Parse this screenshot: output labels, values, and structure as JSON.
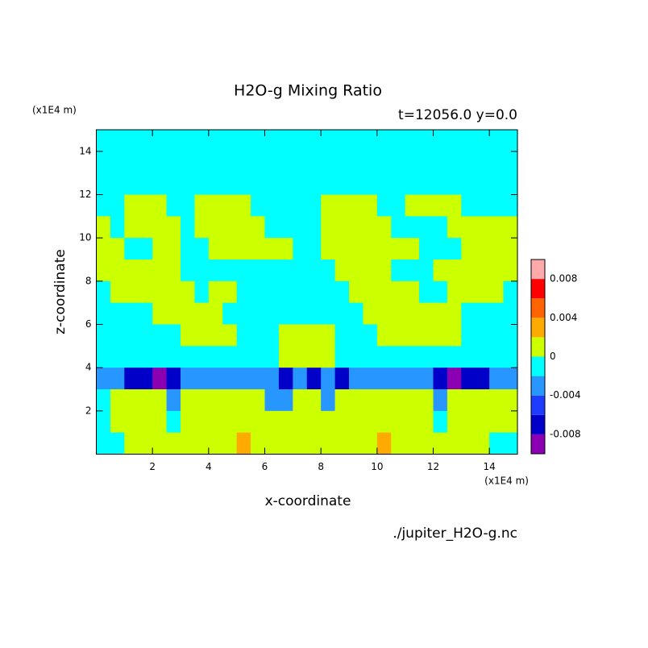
{
  "chart_data": {
    "type": "contour",
    "title": "H2O-g Mixing Ratio",
    "subtitle": "t=12056.0 y=0.0",
    "x_unit": "(x1E4 m)",
    "y_unit": "(x1E4 m)",
    "x_label": "x-coordinate",
    "y_label": "z-coordinate",
    "source": "./jupiter_H2O-g.nc",
    "xlim": [
      0,
      15
    ],
    "ylim": [
      0,
      15
    ],
    "xticks": [
      2,
      4,
      6,
      8,
      10,
      12,
      14
    ],
    "yticks": [
      2,
      4,
      6,
      8,
      10,
      12,
      14
    ],
    "levels": [
      -0.01,
      -0.008,
      -0.006,
      -0.004,
      -0.002,
      0,
      0.002,
      0.004,
      0.006,
      0.008,
      0.01
    ],
    "colors": [
      "#8c00b4",
      "#0000c8",
      "#1e3cff",
      "#2896ff",
      "#00ffff",
      "#ccff00",
      "#ffaa00",
      "#ff6400",
      "#ff0000",
      "#ffaaaa"
    ],
    "colorbar_ticks": [
      0.008,
      0.004,
      0,
      -0.004,
      -0.008
    ],
    "values": [
      [
        -0.001,
        -0.001,
        -0.001,
        -0.001,
        -0.001,
        -0.001,
        -0.001,
        -0.001,
        -0.001,
        -0.001,
        -0.001,
        -0.001,
        -0.001,
        -0.001,
        -0.001,
        -0.001,
        -0.001,
        -0.001,
        -0.001,
        -0.001,
        -0.001,
        -0.001,
        -0.001,
        -0.001,
        -0.001,
        -0.001,
        -0.001,
        -0.001,
        -0.001,
        -0.001
      ],
      [
        -0.001,
        -0.001,
        -0.001,
        -0.001,
        -0.001,
        -0.001,
        -0.001,
        -0.001,
        -0.001,
        -0.001,
        -0.001,
        -0.001,
        -0.001,
        -0.001,
        -0.001,
        -0.001,
        -0.001,
        -0.001,
        -0.001,
        -0.001,
        -0.001,
        -0.001,
        -0.001,
        -0.001,
        -0.001,
        -0.001,
        -0.001,
        -0.001,
        -0.001,
        -0.001
      ],
      [
        -0.001,
        -0.001,
        -0.001,
        -0.001,
        -0.001,
        -0.001,
        -0.001,
        -0.001,
        -0.001,
        -0.001,
        -0.001,
        -0.001,
        -0.001,
        -0.001,
        -0.001,
        -0.001,
        -0.001,
        -0.001,
        -0.001,
        -0.001,
        -0.001,
        -0.001,
        -0.001,
        -0.001,
        -0.001,
        -0.001,
        -0.001,
        -0.001,
        -0.001,
        -0.001
      ],
      [
        -0.001,
        -0.001,
        0.001,
        0.001,
        0.001,
        -0.001,
        -0.001,
        0.001,
        0.001,
        0.001,
        0.001,
        -0.001,
        -0.001,
        -0.001,
        -0.001,
        -0.001,
        0.001,
        0.001,
        0.001,
        0.001,
        -0.001,
        -0.001,
        0.001,
        0.001,
        0.001,
        0.001,
        -0.001,
        -0.001,
        -0.001,
        -0.001
      ],
      [
        0.001,
        -0.001,
        0.001,
        0.001,
        0.001,
        0.001,
        -0.001,
        0.001,
        0.001,
        0.001,
        0.001,
        0.001,
        -0.001,
        -0.001,
        -0.001,
        -0.001,
        0.001,
        0.001,
        0.001,
        0.001,
        0.001,
        -0.001,
        -0.001,
        -0.001,
        -0.001,
        0.001,
        0.001,
        0.001,
        0.001,
        0.001
      ],
      [
        0.001,
        0.001,
        -0.001,
        -0.001,
        0.001,
        0.001,
        -0.001,
        -0.001,
        0.001,
        0.001,
        0.001,
        0.001,
        0.001,
        0.001,
        -0.001,
        -0.001,
        0.001,
        0.001,
        0.001,
        0.001,
        0.001,
        0.001,
        0.001,
        -0.001,
        -0.001,
        -0.001,
        0.001,
        0.001,
        0.001,
        0.001
      ],
      [
        0.001,
        0.001,
        0.001,
        0.001,
        0.001,
        0.001,
        -0.001,
        -0.001,
        -0.001,
        -0.001,
        -0.001,
        -0.001,
        -0.001,
        -0.001,
        -0.001,
        -0.001,
        -0.001,
        0.001,
        0.001,
        0.001,
        0.001,
        -0.001,
        -0.001,
        -0.001,
        0.001,
        0.001,
        0.001,
        0.001,
        0.001,
        0.001
      ],
      [
        -0.001,
        0.001,
        0.001,
        0.001,
        0.001,
        0.001,
        0.001,
        -0.001,
        0.001,
        0.001,
        -0.001,
        -0.001,
        -0.001,
        -0.001,
        -0.001,
        -0.001,
        -0.001,
        -0.001,
        0.001,
        0.001,
        0.001,
        0.001,
        0.001,
        -0.001,
        -0.001,
        0.001,
        0.001,
        0.001,
        0.001,
        -0.001
      ],
      [
        -0.001,
        -0.001,
        -0.001,
        -0.001,
        0.001,
        0.001,
        0.001,
        0.001,
        0.001,
        -0.001,
        -0.001,
        -0.001,
        -0.001,
        -0.001,
        -0.001,
        -0.001,
        -0.001,
        -0.001,
        -0.001,
        0.001,
        0.001,
        0.001,
        0.001,
        0.001,
        0.001,
        0.001,
        -0.001,
        -0.001,
        -0.001,
        -0.001
      ],
      [
        -0.001,
        -0.001,
        -0.001,
        -0.001,
        -0.001,
        -0.001,
        0.001,
        0.001,
        0.001,
        0.001,
        -0.001,
        -0.001,
        -0.001,
        0.001,
        0.001,
        0.001,
        0.001,
        -0.001,
        -0.001,
        -0.001,
        0.001,
        0.001,
        0.001,
        0.001,
        0.001,
        0.001,
        -0.001,
        -0.001,
        -0.001,
        -0.001
      ],
      [
        -0.001,
        -0.001,
        -0.001,
        -0.001,
        -0.001,
        -0.001,
        -0.001,
        -0.001,
        -0.001,
        -0.001,
        -0.001,
        -0.001,
        -0.001,
        0.001,
        0.001,
        0.001,
        0.001,
        -0.001,
        -0.001,
        -0.001,
        -0.001,
        -0.001,
        -0.001,
        -0.001,
        -0.001,
        -0.001,
        -0.001,
        -0.001,
        -0.001,
        -0.001
      ],
      [
        -0.003,
        -0.003,
        -0.007,
        -0.007,
        -0.009,
        -0.007,
        -0.003,
        -0.003,
        -0.003,
        -0.003,
        -0.003,
        -0.003,
        -0.003,
        -0.007,
        -0.003,
        -0.007,
        -0.003,
        -0.007,
        -0.003,
        -0.003,
        -0.003,
        -0.003,
        -0.003,
        -0.003,
        -0.007,
        -0.009,
        -0.007,
        -0.007,
        -0.003,
        -0.003
      ],
      [
        -0.001,
        0.001,
        0.001,
        0.001,
        0.001,
        -0.003,
        0.001,
        0.001,
        0.001,
        0.001,
        0.001,
        0.001,
        -0.003,
        -0.003,
        0.001,
        0.001,
        -0.003,
        0.001,
        0.001,
        0.001,
        0.001,
        0.001,
        0.001,
        0.001,
        -0.003,
        0.001,
        0.001,
        0.001,
        0.001,
        0.001
      ],
      [
        -0.001,
        0.001,
        0.001,
        0.001,
        0.001,
        -0.001,
        0.001,
        0.001,
        0.001,
        0.001,
        0.001,
        0.001,
        0.001,
        0.001,
        0.001,
        0.001,
        0.001,
        0.001,
        0.001,
        0.001,
        0.001,
        0.001,
        0.001,
        0.001,
        -0.001,
        0.001,
        0.001,
        0.001,
        0.001,
        0.001
      ],
      [
        -0.001,
        -0.001,
        0.001,
        0.001,
        0.001,
        0.001,
        0.001,
        0.001,
        0.001,
        0.001,
        0.003,
        0.001,
        0.001,
        0.001,
        0.001,
        0.001,
        0.001,
        0.001,
        0.001,
        0.001,
        0.003,
        0.001,
        0.001,
        0.001,
        0.001,
        0.001,
        0.001,
        0.001,
        -0.001,
        -0.001
      ]
    ]
  }
}
